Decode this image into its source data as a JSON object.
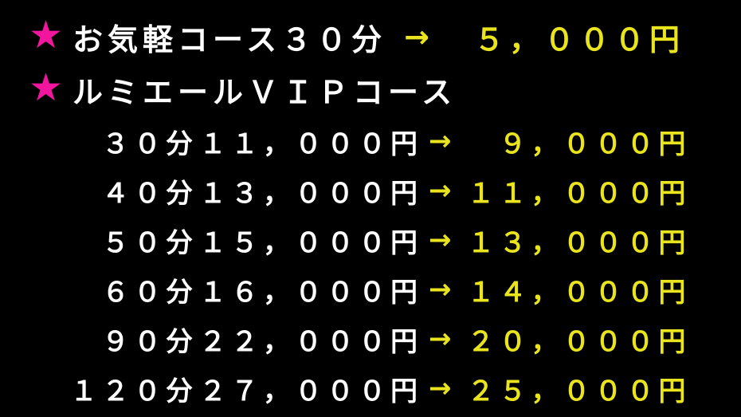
{
  "board": {
    "background": "#000000",
    "colors": {
      "star_pink": "#F2169E",
      "text_white": "#FFFFFF",
      "price_yellow": "#E9E41E"
    },
    "star": "★",
    "course_easy": {
      "label": "お気軽コース３０分",
      "arrow": "→",
      "price": "５，０００円"
    },
    "course_vip": {
      "label": "ルミエールＶＩＰコース"
    },
    "vip_rows": [
      {
        "duration": "３０分",
        "regular_price": "１１，０００円",
        "arrow": "→",
        "sale_price": "９，０００円"
      },
      {
        "duration": "４０分",
        "regular_price": "１３，０００円",
        "arrow": "→",
        "sale_price": "１１，０００円"
      },
      {
        "duration": "５０分",
        "regular_price": "１５，０００円",
        "arrow": "→",
        "sale_price": "１３，０００円"
      },
      {
        "duration": "６０分",
        "regular_price": "１６，０００円",
        "arrow": "→",
        "sale_price": "１４，０００円"
      },
      {
        "duration": "９０分",
        "regular_price": "２２，０００円",
        "arrow": "→",
        "sale_price": "２０，０００円"
      },
      {
        "duration": "１２０分",
        "regular_price": "２７，０００円",
        "arrow": "→",
        "sale_price": "２５，０００円"
      }
    ]
  }
}
